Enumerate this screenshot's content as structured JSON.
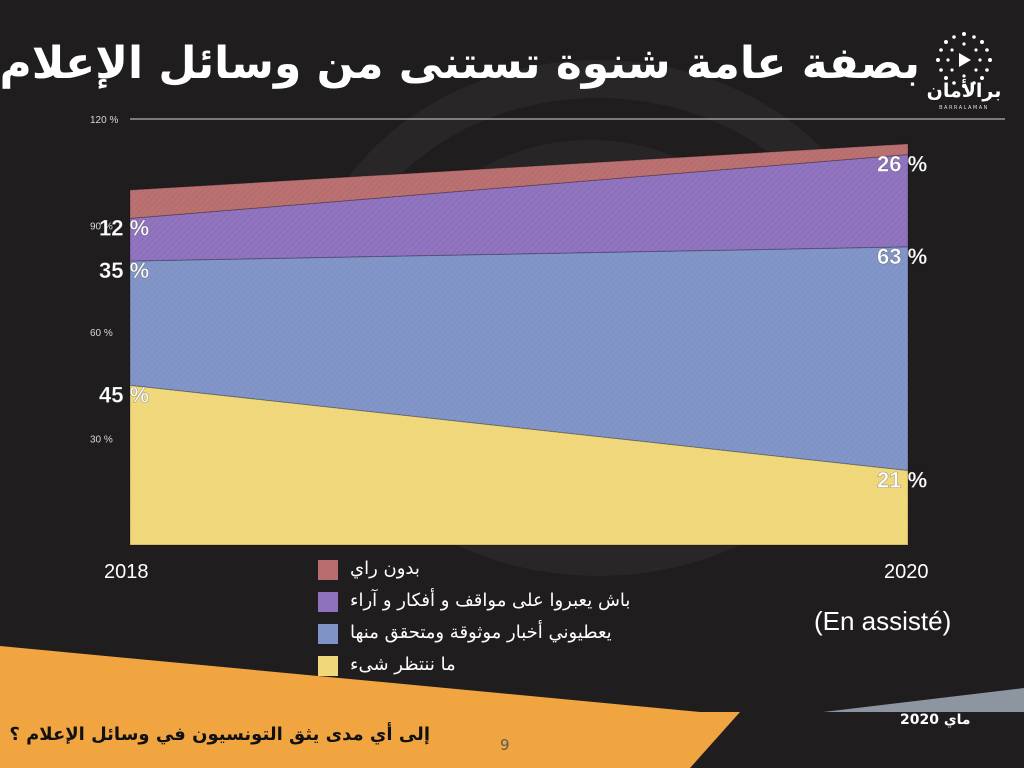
{
  "slide": {
    "title": "بصفة عامة شنوة تستنى من وسائل الإعلام؟",
    "brand_name": "برالأمان",
    "brand_sub": "BARRALAMAN",
    "note": "(En assisté)",
    "footer_question": "إلى أي مدى يثق التونسيون في وسائل الإعلام ؟",
    "page_number": "9",
    "date": "ماي 2020"
  },
  "colors": {
    "background": "#1f1d1e",
    "series_yellow": "#efd77a",
    "series_blue": "#7f93c6",
    "series_purple": "#8e71bd",
    "series_red": "#b86e6e",
    "footer_orange": "#f0a541",
    "footer_grey": "#8c95a0"
  },
  "legend": [
    {
      "label": "بدون راي",
      "color": "#b86e6e"
    },
    {
      "label": "باش يعبروا على مواقف و أفكار و آراء",
      "color": "#8e71bd"
    },
    {
      "label": "يعطيوني أخبار موثوقة ومتحقق منها",
      "color": "#7f93c6"
    },
    {
      "label": "ما ننتظر شىء",
      "color": "#efd77a"
    }
  ],
  "chart_data": {
    "type": "area",
    "stacked": true,
    "x": [
      "2018",
      "2020"
    ],
    "ylim": [
      0,
      120
    ],
    "yticks": [
      "30 %",
      "60 %",
      "90 %",
      "120 %"
    ],
    "ytick_values": [
      30,
      60,
      90,
      120
    ],
    "grid": false,
    "series": [
      {
        "name": "ما ننتظر شىء",
        "values": [
          45,
          21
        ],
        "labels": [
          "45 %",
          "21 %"
        ],
        "color": "#efd77a"
      },
      {
        "name": "يعطيوني أخبار موثوقة ومتحقق منها",
        "values": [
          35,
          63
        ],
        "labels": [
          "35 %",
          "63 %"
        ],
        "color": "#7f93c6"
      },
      {
        "name": "باش يعبروا على مواقف و أفكار و آراء",
        "values": [
          12,
          26
        ],
        "labels": [
          "12 %",
          "26 %"
        ],
        "color": "#8e71bd"
      },
      {
        "name": "بدون راي",
        "values": [
          8,
          3
        ],
        "labels": [
          "",
          ""
        ],
        "color": "#b86e6e"
      }
    ]
  }
}
